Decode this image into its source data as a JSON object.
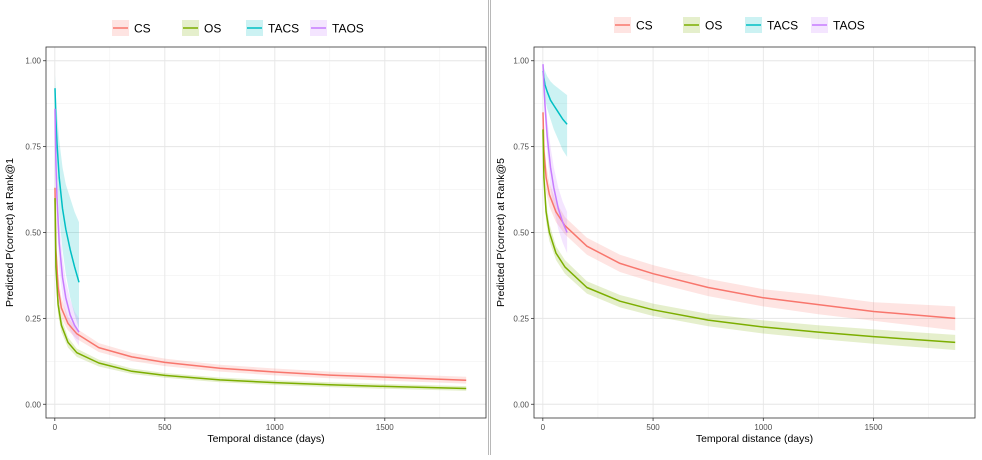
{
  "chart_data": [
    {
      "type": "line",
      "title": "",
      "xlabel": "Temporal distance (days)",
      "ylabel": "Predicted P(correct) at Rank@1",
      "xlim": [
        -40,
        1960
      ],
      "ylim": [
        -0.04,
        1.04
      ],
      "x_ticks": [
        0,
        500,
        1000,
        1500
      ],
      "y_ticks": [
        0.0,
        0.25,
        0.5,
        0.75,
        1.0
      ],
      "x_tick_labels": [
        "0",
        "500",
        "1000",
        "1500"
      ],
      "y_tick_labels": [
        "0.00",
        "0.25",
        "0.50",
        "0.75",
        "1.00"
      ],
      "grid": true,
      "legend_position": "top",
      "series": [
        {
          "name": "CS",
          "color": "#F8766D",
          "x": [
            1,
            5,
            15,
            30,
            60,
            100,
            200,
            350,
            500,
            750,
            1000,
            1250,
            1500,
            1870
          ],
          "y": [
            0.63,
            0.45,
            0.34,
            0.28,
            0.235,
            0.205,
            0.165,
            0.138,
            0.122,
            0.105,
            0.094,
            0.085,
            0.079,
            0.07
          ],
          "lower": [
            0.58,
            0.4,
            0.3,
            0.25,
            0.215,
            0.19,
            0.152,
            0.126,
            0.111,
            0.095,
            0.084,
            0.076,
            0.069,
            0.06
          ],
          "upper": [
            0.68,
            0.5,
            0.38,
            0.31,
            0.255,
            0.22,
            0.178,
            0.15,
            0.133,
            0.115,
            0.104,
            0.095,
            0.089,
            0.08
          ]
        },
        {
          "name": "OS",
          "color": "#7CAE00",
          "x": [
            1,
            5,
            15,
            30,
            60,
            100,
            200,
            350,
            500,
            750,
            1000,
            1250,
            1500,
            1870
          ],
          "y": [
            0.6,
            0.4,
            0.29,
            0.23,
            0.18,
            0.15,
            0.12,
            0.096,
            0.084,
            0.071,
            0.063,
            0.057,
            0.052,
            0.046
          ],
          "lower": [
            0.55,
            0.36,
            0.26,
            0.21,
            0.165,
            0.138,
            0.11,
            0.088,
            0.077,
            0.064,
            0.056,
            0.05,
            0.045,
            0.039
          ],
          "upper": [
            0.65,
            0.44,
            0.32,
            0.25,
            0.195,
            0.162,
            0.13,
            0.104,
            0.091,
            0.078,
            0.07,
            0.064,
            0.059,
            0.053
          ]
        },
        {
          "name": "TACS",
          "color": "#00BFC4",
          "x": [
            1,
            5,
            10,
            20,
            35,
            50,
            70,
            90,
            110
          ],
          "y": [
            0.92,
            0.83,
            0.76,
            0.66,
            0.57,
            0.51,
            0.45,
            0.4,
            0.355
          ],
          "lower": [
            0.85,
            0.74,
            0.66,
            0.55,
            0.45,
            0.38,
            0.31,
            0.26,
            0.22
          ],
          "upper": [
            0.96,
            0.9,
            0.85,
            0.77,
            0.69,
            0.64,
            0.6,
            0.56,
            0.53
          ]
        },
        {
          "name": "TAOS",
          "color": "#C77CFF",
          "x": [
            1,
            5,
            10,
            20,
            35,
            50,
            70,
            90,
            110
          ],
          "y": [
            0.86,
            0.7,
            0.6,
            0.47,
            0.37,
            0.31,
            0.26,
            0.23,
            0.21
          ],
          "lower": [
            0.8,
            0.63,
            0.53,
            0.4,
            0.31,
            0.26,
            0.215,
            0.19,
            0.17
          ],
          "upper": [
            0.91,
            0.77,
            0.67,
            0.54,
            0.43,
            0.36,
            0.305,
            0.27,
            0.25
          ]
        }
      ]
    },
    {
      "type": "line",
      "title": "",
      "xlabel": "Temporal distance (days)",
      "ylabel": "Predicted P(correct) at Rank@5",
      "xlim": [
        -40,
        1960
      ],
      "ylim": [
        -0.04,
        1.04
      ],
      "x_ticks": [
        0,
        500,
        1000,
        1500
      ],
      "y_ticks": [
        0.0,
        0.25,
        0.5,
        0.75,
        1.0
      ],
      "x_tick_labels": [
        "0",
        "500",
        "1000",
        "1500"
      ],
      "y_tick_labels": [
        "0.00",
        "0.25",
        "0.50",
        "0.75",
        "1.00"
      ],
      "grid": true,
      "legend_position": "top",
      "series": [
        {
          "name": "CS",
          "color": "#F8766D",
          "x": [
            1,
            5,
            15,
            30,
            60,
            100,
            200,
            350,
            500,
            750,
            1000,
            1250,
            1500,
            1870
          ],
          "y": [
            0.85,
            0.74,
            0.66,
            0.61,
            0.56,
            0.52,
            0.46,
            0.41,
            0.38,
            0.34,
            0.31,
            0.29,
            0.27,
            0.25
          ],
          "lower": [
            0.81,
            0.7,
            0.62,
            0.575,
            0.53,
            0.495,
            0.435,
            0.385,
            0.355,
            0.315,
            0.285,
            0.262,
            0.243,
            0.215
          ],
          "upper": [
            0.89,
            0.78,
            0.7,
            0.645,
            0.59,
            0.545,
            0.485,
            0.435,
            0.405,
            0.365,
            0.335,
            0.318,
            0.297,
            0.285
          ]
        },
        {
          "name": "OS",
          "color": "#7CAE00",
          "x": [
            1,
            5,
            15,
            30,
            60,
            100,
            200,
            350,
            500,
            750,
            1000,
            1250,
            1500,
            1870
          ],
          "y": [
            0.8,
            0.66,
            0.56,
            0.5,
            0.44,
            0.4,
            0.34,
            0.3,
            0.275,
            0.245,
            0.225,
            0.21,
            0.197,
            0.18
          ],
          "lower": [
            0.76,
            0.62,
            0.53,
            0.475,
            0.42,
            0.38,
            0.322,
            0.282,
            0.257,
            0.227,
            0.206,
            0.19,
            0.176,
            0.158
          ],
          "upper": [
            0.84,
            0.7,
            0.59,
            0.525,
            0.46,
            0.42,
            0.358,
            0.318,
            0.293,
            0.263,
            0.244,
            0.23,
            0.218,
            0.202
          ]
        },
        {
          "name": "TACS",
          "color": "#00BFC4",
          "x": [
            1,
            5,
            10,
            20,
            35,
            50,
            70,
            90,
            110
          ],
          "y": [
            0.97,
            0.95,
            0.93,
            0.91,
            0.885,
            0.87,
            0.85,
            0.83,
            0.815
          ],
          "lower": [
            0.94,
            0.92,
            0.89,
            0.86,
            0.83,
            0.8,
            0.77,
            0.74,
            0.72
          ],
          "upper": [
            0.99,
            0.98,
            0.97,
            0.955,
            0.94,
            0.93,
            0.92,
            0.91,
            0.9
          ]
        },
        {
          "name": "TAOS",
          "color": "#C77CFF",
          "x": [
            1,
            5,
            10,
            20,
            35,
            50,
            70,
            90,
            110
          ],
          "y": [
            0.99,
            0.93,
            0.87,
            0.78,
            0.69,
            0.63,
            0.57,
            0.53,
            0.5
          ],
          "lower": [
            0.97,
            0.9,
            0.83,
            0.73,
            0.63,
            0.57,
            0.51,
            0.47,
            0.44
          ],
          "upper": [
            1.0,
            0.96,
            0.91,
            0.83,
            0.75,
            0.69,
            0.63,
            0.59,
            0.56
          ]
        }
      ]
    }
  ]
}
